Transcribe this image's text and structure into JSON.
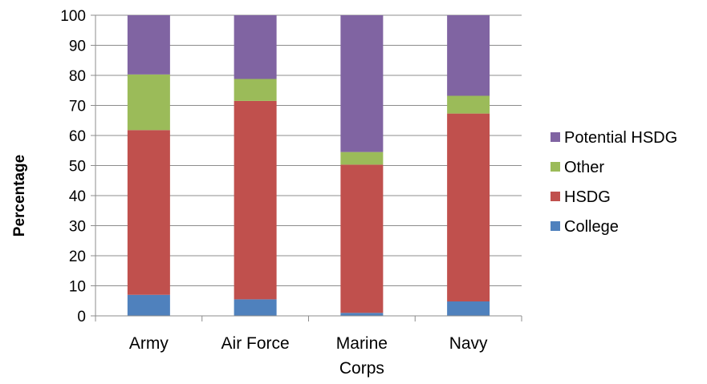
{
  "chart_data": {
    "type": "bar",
    "stacked": true,
    "categories": [
      [
        "Army"
      ],
      [
        "Air Force"
      ],
      [
        "Marine",
        "Corps"
      ],
      [
        "Navy"
      ]
    ],
    "series": [
      {
        "name": "College",
        "color": "#4f81bd",
        "values": [
          7,
          5.5,
          1,
          4.8
        ]
      },
      {
        "name": "HSDG",
        "color": "#c0504d",
        "values": [
          54.8,
          66,
          49.3,
          62.5
        ]
      },
      {
        "name": "Other",
        "color": "#9bbb59",
        "values": [
          18.5,
          7.3,
          4.2,
          5.9
        ]
      },
      {
        "name": "Potential HSDG",
        "color": "#8064a2",
        "values": [
          19.7,
          21.2,
          45.5,
          26.8
        ]
      }
    ],
    "ylabel": "Percentage",
    "ylim": [
      0,
      100
    ],
    "yticks": [
      0,
      10,
      20,
      30,
      40,
      50,
      60,
      70,
      80,
      90,
      100
    ],
    "grid": true,
    "legend": {
      "placement": "right",
      "order": [
        "Potential HSDG",
        "Other",
        "HSDG",
        "College"
      ]
    }
  }
}
